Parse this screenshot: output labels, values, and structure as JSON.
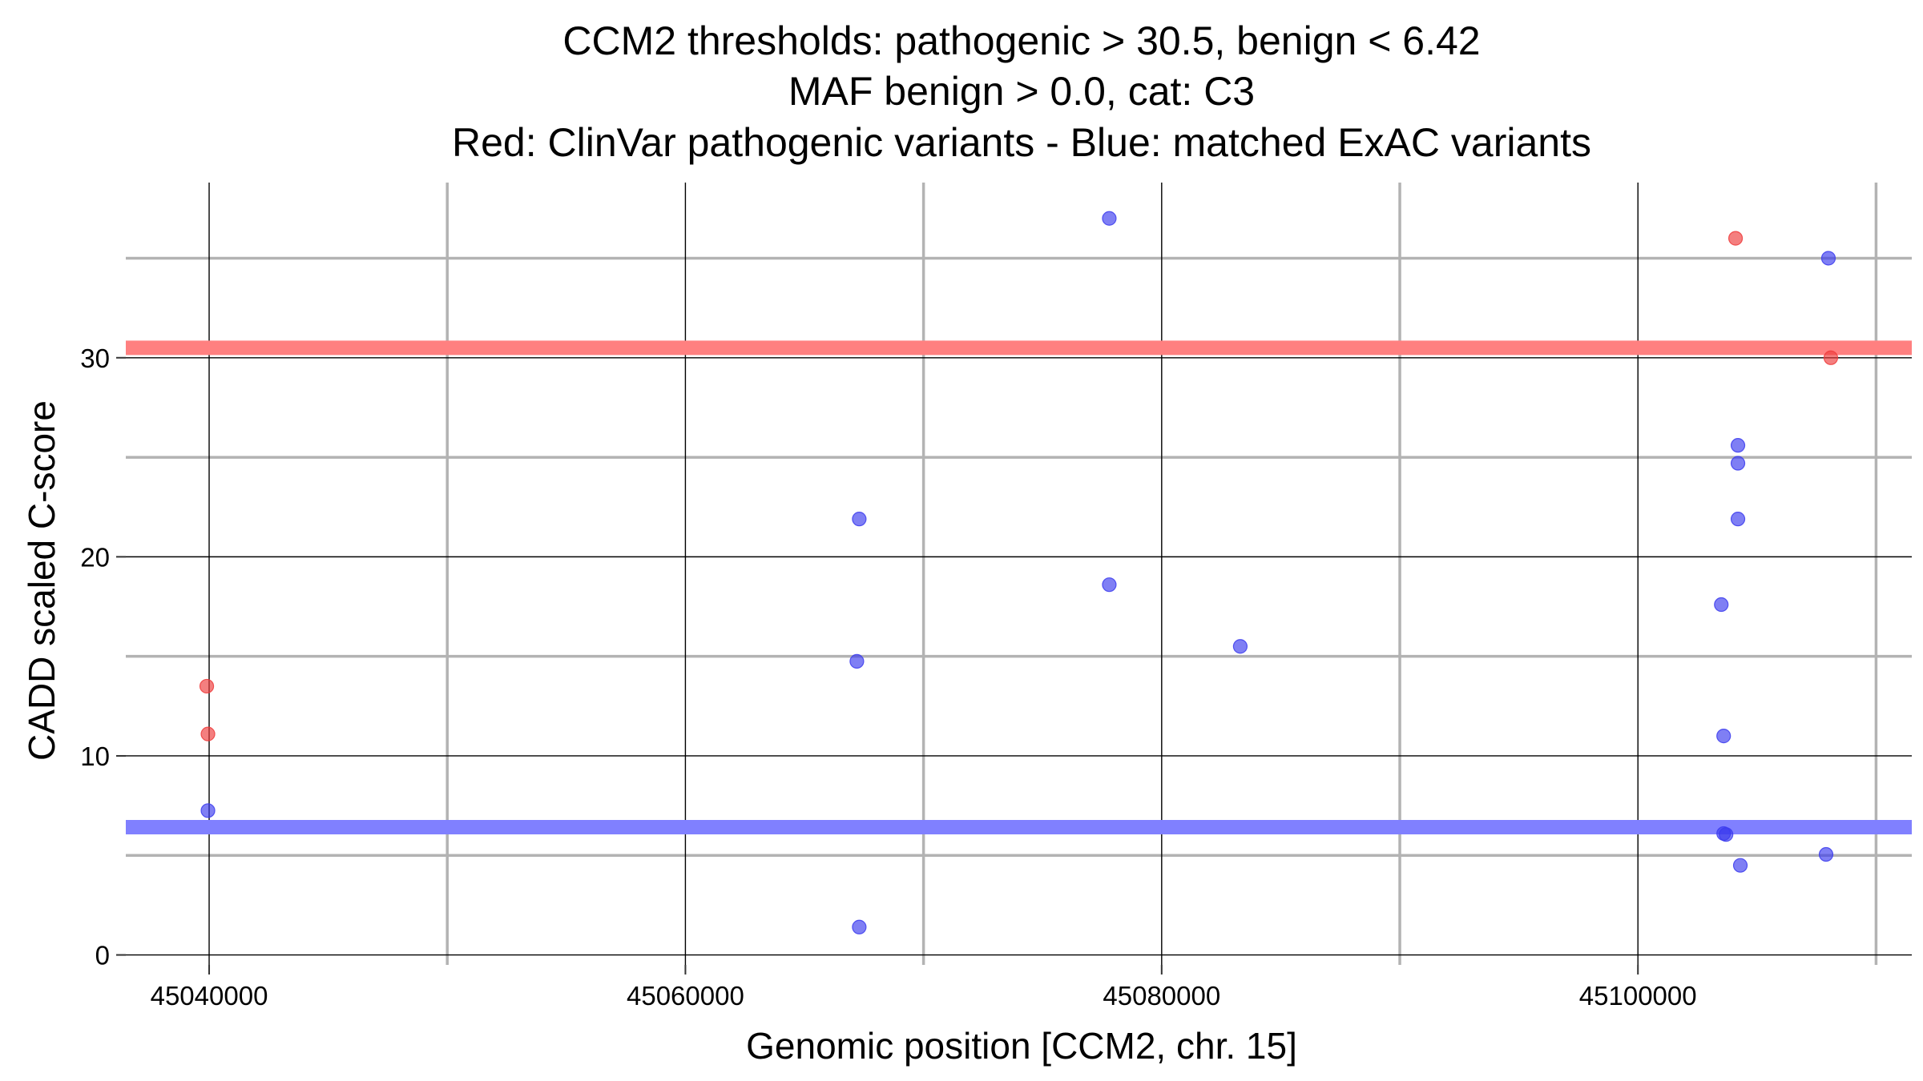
{
  "chart_data": {
    "type": "scatter",
    "title_lines": [
      "CCM2 thresholds: pathogenic > 30.5, benign < 6.42",
      "MAF benign > 0.0, cat: C3",
      "Red: ClinVar pathogenic variants - Blue: matched ExAC variants"
    ],
    "xlabel": "Genomic position [CCM2, chr. 15]",
    "ylabel": "CADD scaled C-score",
    "xlim": [
      45036500,
      45111500
    ],
    "ylim": [
      -0.5,
      38.8
    ],
    "x_major_ticks": [
      45040000,
      45060000,
      45080000,
      45100000
    ],
    "x_tick_labels": [
      "45040000",
      "45060000",
      "45080000",
      "45100000"
    ],
    "x_minor_ticks": [
      45050000,
      45070000,
      45090000,
      45110000
    ],
    "y_major_ticks": [
      0,
      10,
      20,
      30
    ],
    "y_tick_labels": [
      "0",
      "10",
      "20",
      "30"
    ],
    "y_minor_ticks": [
      5,
      15,
      25,
      35
    ],
    "grid": true,
    "thresholds": [
      {
        "name": "pathogenic",
        "value": 30.5,
        "color": "#ff8080"
      },
      {
        "name": "benign",
        "value": 6.42,
        "color": "#8080ff"
      }
    ],
    "series": [
      {
        "color": "#ee3b3b",
        "points": [
          {
            "x": 45039900,
            "y": 13.5
          },
          {
            "x": 45039950,
            "y": 11.1
          },
          {
            "x": 45104100,
            "y": 36.0
          },
          {
            "x": 45108100,
            "y": 30.0
          }
        ]
      },
      {
        "color": "#3b3bee",
        "points": [
          {
            "x": 45039950,
            "y": 7.25
          },
          {
            "x": 45067300,
            "y": 21.9
          },
          {
            "x": 45067200,
            "y": 14.75
          },
          {
            "x": 45067300,
            "y": 1.4
          },
          {
            "x": 45077800,
            "y": 37.0
          },
          {
            "x": 45077800,
            "y": 18.6
          },
          {
            "x": 45083300,
            "y": 15.5
          },
          {
            "x": 45103500,
            "y": 17.6
          },
          {
            "x": 45103600,
            "y": 11.0
          },
          {
            "x": 45103600,
            "y": 6.1
          },
          {
            "x": 45103700,
            "y": 6.05
          },
          {
            "x": 45104200,
            "y": 25.6
          },
          {
            "x": 45104200,
            "y": 24.7
          },
          {
            "x": 45104200,
            "y": 21.9
          },
          {
            "x": 45104300,
            "y": 4.5
          },
          {
            "x": 45108000,
            "y": 35.0
          },
          {
            "x": 45107900,
            "y": 5.05
          }
        ]
      }
    ]
  }
}
